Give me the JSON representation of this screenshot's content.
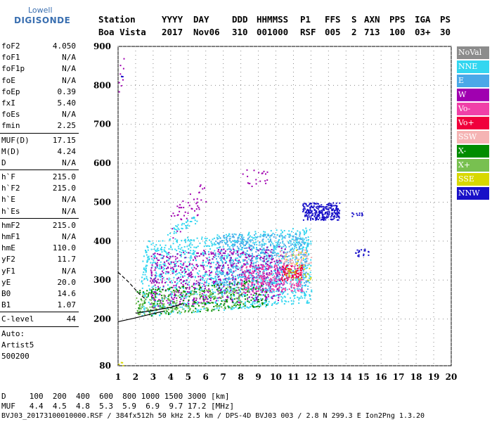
{
  "logo": {
    "line1": "Lowell",
    "line2": "DIGISONDE"
  },
  "header": {
    "labels": [
      {
        "text": "Station",
        "x": 0
      },
      {
        "text": "YYYY",
        "x": 90
      },
      {
        "text": "DAY",
        "x": 135
      },
      {
        "text": "DDD",
        "x": 190
      },
      {
        "text": "HHMMSS",
        "x": 225
      },
      {
        "text": "P1",
        "x": 287
      },
      {
        "text": "FFS",
        "x": 322
      },
      {
        "text": "S",
        "x": 360
      },
      {
        "text": "AXN",
        "x": 378
      },
      {
        "text": "PPS",
        "x": 414
      },
      {
        "text": "IGA",
        "x": 450
      },
      {
        "text": "PS",
        "x": 486
      }
    ],
    "values": [
      {
        "text": "Boa Vista",
        "x": 0
      },
      {
        "text": "2017",
        "x": 90
      },
      {
        "text": "Nov06",
        "x": 135
      },
      {
        "text": "310",
        "x": 190
      },
      {
        "text": "001000",
        "x": 225
      },
      {
        "text": "RSF",
        "x": 287
      },
      {
        "text": "005",
        "x": 322
      },
      {
        "text": "2",
        "x": 360
      },
      {
        "text": "713",
        "x": 378
      },
      {
        "text": "100",
        "x": 414
      },
      {
        "text": "03+",
        "x": 450
      },
      {
        "text": "30",
        "x": 486
      }
    ]
  },
  "params": {
    "group1": [
      {
        "name": "foF2",
        "value": "4.050"
      },
      {
        "name": "foF1",
        "value": "N/A"
      },
      {
        "name": "foF1p",
        "value": "N/A"
      },
      {
        "name": "foE",
        "value": "N/A"
      },
      {
        "name": "foEp",
        "value": "0.39"
      },
      {
        "name": "fxI",
        "value": "5.40"
      },
      {
        "name": "foEs",
        "value": "N/A"
      },
      {
        "name": "fmin",
        "value": "2.25"
      }
    ],
    "group2": [
      {
        "name": "MUF(D)",
        "value": "17.15"
      },
      {
        "name": "M(D)",
        "value": "4.24"
      },
      {
        "name": "D",
        "value": "N/A"
      }
    ],
    "group3": [
      {
        "name": "h`F",
        "value": "215.0"
      },
      {
        "name": "h`F2",
        "value": "215.0"
      },
      {
        "name": "h`E",
        "value": "N/A"
      },
      {
        "name": "h`Es",
        "value": "N/A"
      }
    ],
    "group4": [
      {
        "name": "hmF2",
        "value": "215.0"
      },
      {
        "name": "hmF1",
        "value": "N/A"
      },
      {
        "name": "hmE",
        "value": "110.0"
      },
      {
        "name": "yF2",
        "value": "11.7"
      },
      {
        "name": "yF1",
        "value": "N/A"
      },
      {
        "name": "yE",
        "value": "20.0"
      },
      {
        "name": "B0",
        "value": "14.6"
      },
      {
        "name": "B1",
        "value": "1.07"
      }
    ],
    "group5": [
      {
        "name": "C-level",
        "value": "44"
      }
    ],
    "auto_lines": [
      "Auto:",
      "Artist5",
      "500200"
    ]
  },
  "legend": [
    {
      "label": "NoVal",
      "color": "#8c8c8c"
    },
    {
      "label": "NNE",
      "color": "#33d6f0"
    },
    {
      "label": "E",
      "color": "#4aa8e8"
    },
    {
      "label": "W",
      "color": "#a000b0"
    },
    {
      "label": "Vo-",
      "color": "#f040a8"
    },
    {
      "label": "Vo+",
      "color": "#f0003c"
    },
    {
      "label": "SSW",
      "color": "#f5b4b4"
    },
    {
      "label": "X-",
      "color": "#008c00"
    },
    {
      "label": "X+",
      "color": "#78c050"
    },
    {
      "label": "SSE",
      "color": "#d8d800"
    },
    {
      "label": "NNW",
      "color": "#1810c8"
    }
  ],
  "bottom": {
    "d_line": "D     100  200  400  600  800 1000 1500 3000 [km]",
    "muf_line": "MUF   4.4  4.5  4.8  5.3  5.9  6.9  9.7 17.2 [MHz]",
    "footer": "BVJ03_20173100010000.RSF / 384fx512h 50 kHz 2.5 km / DPS-4D BVJ03 003 / 2.8 N 299.3 E Ion2Png 1.3.20"
  },
  "chart_data": {
    "type": "scatter",
    "xlim": [
      1,
      20
    ],
    "ylim": [
      80,
      900
    ],
    "x_ticks": [
      1,
      2,
      3,
      4,
      5,
      6,
      7,
      8,
      9,
      10,
      11,
      12,
      13,
      14,
      15,
      16,
      17,
      18,
      19,
      20
    ],
    "y_ticks": [
      80,
      200,
      300,
      400,
      500,
      600,
      700,
      800,
      900
    ],
    "grid": true,
    "xlabel": "",
    "ylabel": "",
    "clusters": [
      {
        "color": "#33d6f0",
        "x": [
          2.3,
          12.0
        ],
        "y": [
          225,
          420
        ],
        "n": 1400,
        "trend": 18
      },
      {
        "color": "#4aa8e8",
        "x": [
          6.5,
          11.8
        ],
        "y": [
          270,
          420
        ],
        "n": 600,
        "trend": 0
      },
      {
        "color": "#a000b0",
        "x": [
          2.8,
          10.5
        ],
        "y": [
          240,
          380
        ],
        "n": 650,
        "trend": 10
      },
      {
        "color": "#f040a8",
        "x": [
          8.0,
          11.5
        ],
        "y": [
          270,
          340
        ],
        "n": 220,
        "trend": 0
      },
      {
        "color": "#f0003c",
        "x": [
          10.2,
          11.5
        ],
        "y": [
          300,
          340
        ],
        "n": 70,
        "trend": 0
      },
      {
        "color": "#008c00",
        "x": [
          2.0,
          9.5
        ],
        "y": [
          220,
          290
        ],
        "n": 260,
        "trend": 14
      },
      {
        "color": "#78c050",
        "x": [
          2.0,
          8.5
        ],
        "y": [
          220,
          280
        ],
        "n": 180,
        "trend": 14
      },
      {
        "color": "#d8d800",
        "x": [
          10.5,
          12.0
        ],
        "y": [
          300,
          380
        ],
        "n": 40,
        "trend": 0
      },
      {
        "color": "#f5b4b4",
        "x": [
          10.0,
          12.0
        ],
        "y": [
          340,
          380
        ],
        "n": 60,
        "trend": 0
      },
      {
        "color": "#1810c8",
        "x": [
          11.5,
          13.6
        ],
        "y": [
          455,
          500
        ],
        "n": 260,
        "trend": 0
      },
      {
        "color": "#1810c8",
        "x": [
          14.3,
          14.9
        ],
        "y": [
          465,
          475
        ],
        "n": 12,
        "trend": 0
      },
      {
        "color": "#1810c8",
        "x": [
          14.5,
          15.3
        ],
        "y": [
          360,
          385
        ],
        "n": 18,
        "trend": 0
      },
      {
        "color": "#a000b0",
        "x": [
          4.0,
          6.0
        ],
        "y": [
          440,
          520
        ],
        "n": 50,
        "trend": 40
      },
      {
        "color": "#33d6f0",
        "x": [
          3.8,
          5.5
        ],
        "y": [
          430,
          450
        ],
        "n": 40,
        "trend": 18
      },
      {
        "color": "#a000b0",
        "x": [
          8.0,
          9.5
        ],
        "y": [
          540,
          590
        ],
        "n": 20,
        "trend": 0
      },
      {
        "color": "#a000b0",
        "x": [
          1.0,
          1.3
        ],
        "y": [
          780,
          890
        ],
        "n": 8,
        "trend": 0
      },
      {
        "color": "#1810c8",
        "x": [
          1.1,
          1.3
        ],
        "y": [
          820,
          830
        ],
        "n": 3,
        "trend": 0
      },
      {
        "color": "#d8d800",
        "x": [
          1.0,
          1.3
        ],
        "y": [
          80,
          90
        ],
        "n": 4,
        "trend": 0
      }
    ],
    "curves": [
      {
        "style": "dashed",
        "points": [
          [
            1.0,
            320
          ],
          [
            1.6,
            295
          ],
          [
            2.2,
            265
          ],
          [
            2.6,
            250
          ]
        ]
      },
      {
        "style": "solid",
        "points": [
          [
            1.0,
            193
          ],
          [
            2.0,
            203
          ],
          [
            3.0,
            214
          ],
          [
            3.6,
            220
          ]
        ]
      },
      {
        "style": "solid",
        "points": [
          [
            2.0,
            215
          ],
          [
            3.0,
            222
          ],
          [
            4.0,
            230
          ],
          [
            4.6,
            238
          ]
        ]
      }
    ]
  }
}
